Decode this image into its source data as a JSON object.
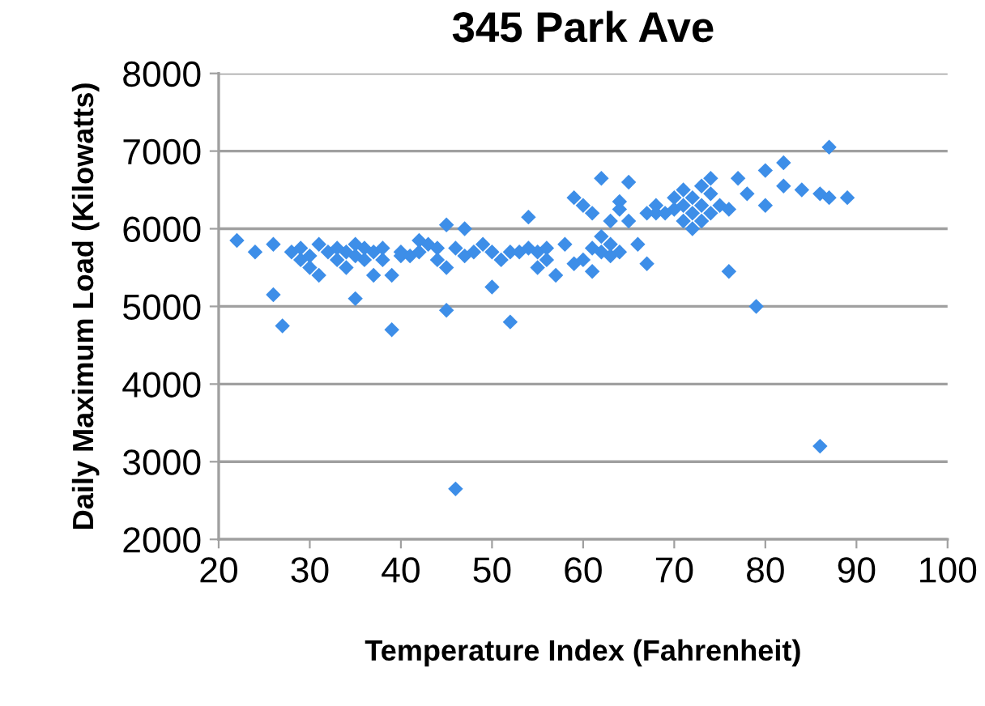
{
  "chart_data": {
    "type": "scatter",
    "title": "345 Park Ave",
    "xlabel": "Temperature Index (Fahrenheit)",
    "ylabel": "Daily Maximum Load (Kilowatts)",
    "xlim": [
      20,
      100
    ],
    "xticks": [
      20,
      30,
      40,
      50,
      60,
      70,
      80,
      90,
      100
    ],
    "ylim": [
      2000,
      8000
    ],
    "yticks": [
      2000,
      3000,
      4000,
      5000,
      6000,
      7000,
      8000
    ],
    "grid": "y",
    "marker": "diamond",
    "series": [
      {
        "color": "#3d8ee8",
        "x": [
          22,
          24,
          26,
          26,
          27,
          28,
          29,
          29,
          30,
          30,
          31,
          31,
          32,
          33,
          33,
          34,
          34,
          35,
          35,
          35,
          36,
          36,
          37,
          37,
          38,
          38,
          39,
          39,
          40,
          40,
          41,
          42,
          42,
          43,
          44,
          44,
          45,
          45,
          45,
          46,
          46,
          47,
          47,
          48,
          49,
          50,
          50,
          51,
          52,
          52,
          53,
          54,
          54,
          55,
          55,
          56,
          56,
          57,
          58,
          59,
          59,
          60,
          60,
          61,
          61,
          61,
          62,
          62,
          62,
          63,
          63,
          63,
          64,
          64,
          64,
          65,
          65,
          66,
          67,
          67,
          68,
          68,
          69,
          70,
          70,
          71,
          71,
          71,
          72,
          72,
          72,
          73,
          73,
          73,
          74,
          74,
          74,
          75,
          76,
          76,
          77,
          78,
          79,
          80,
          80,
          82,
          82,
          84,
          86,
          86,
          87,
          87,
          89
        ],
        "values": [
          5850,
          5700,
          5800,
          5150,
          4750,
          5700,
          5600,
          5750,
          5500,
          5650,
          5800,
          5400,
          5700,
          5600,
          5750,
          5500,
          5700,
          5800,
          5650,
          5100,
          5750,
          5600,
          5700,
          5400,
          5750,
          5600,
          4700,
          5400,
          5700,
          5650,
          5650,
          5850,
          5700,
          5800,
          5750,
          5600,
          5500,
          6050,
          4950,
          2650,
          5750,
          6000,
          5650,
          5700,
          5800,
          5250,
          5700,
          5600,
          4800,
          5700,
          5700,
          6150,
          5750,
          5700,
          5500,
          5750,
          5600,
          5400,
          5800,
          5550,
          6400,
          6300,
          5600,
          5750,
          5450,
          6200,
          5700,
          5900,
          6650,
          6100,
          5650,
          5800,
          6350,
          6250,
          5700,
          6600,
          6100,
          5800,
          6200,
          5550,
          6300,
          6200,
          6200,
          6250,
          6400,
          6100,
          6300,
          6500,
          6200,
          6000,
          6400,
          6550,
          6300,
          6100,
          6650,
          6450,
          6200,
          6300,
          5450,
          6250,
          6650,
          6450,
          5000,
          6750,
          6300,
          6850,
          6550,
          6500,
          3200,
          6450,
          7050,
          6400,
          6400
        ]
      }
    ]
  }
}
